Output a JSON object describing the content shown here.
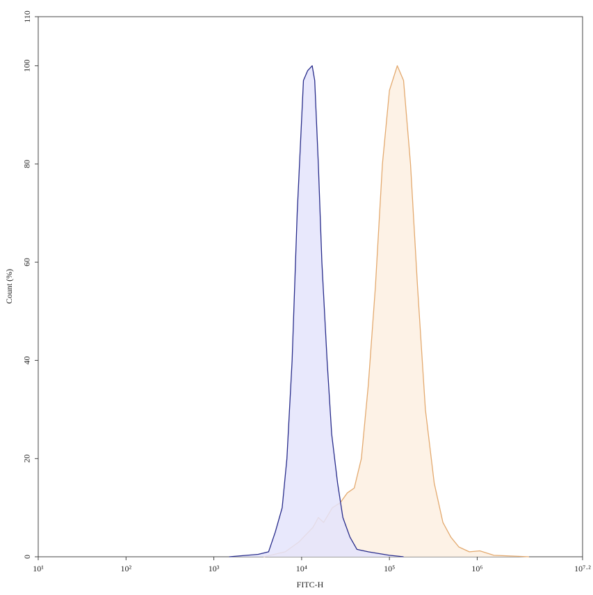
{
  "chart_data": {
    "type": "histogram-overlay",
    "xlabel": "FITC-H",
    "ylabel": "Count (%)",
    "xscale": "log",
    "xlim": [
      10,
      15848931.92
    ],
    "ylim": [
      0,
      110
    ],
    "xticks": [
      {
        "value": 10,
        "label": "10¹"
      },
      {
        "value": 100,
        "label": "10²"
      },
      {
        "value": 1000,
        "label": "10³"
      },
      {
        "value": 10000,
        "label": "10⁴"
      },
      {
        "value": 100000,
        "label": "10⁵"
      },
      {
        "value": 1000000,
        "label": "10⁶"
      },
      {
        "value": 15848931.92,
        "label": "10⁷·²"
      }
    ],
    "yticks": [
      0,
      20,
      40,
      60,
      80,
      100,
      110
    ],
    "series": [
      {
        "color": "#e3a96e",
        "fill": "#fdf0e2",
        "x": [
          3700,
          6500,
          9300,
          13500,
          15500,
          17800,
          22400,
          27500,
          33100,
          39800,
          47900,
          57500,
          69200,
          83200,
          100000,
          123000,
          145000,
          174000,
          209000,
          257000,
          324000,
          407000,
          501000,
          617000,
          813000,
          1070000,
          1550000,
          3890000
        ],
        "values": [
          0,
          1,
          3,
          6,
          8,
          7,
          10,
          11,
          13,
          14,
          20,
          35,
          55,
          80,
          95,
          100,
          97,
          80,
          55,
          30,
          15,
          7,
          4,
          2,
          1,
          1.2,
          0.3,
          0
        ]
      },
      {
        "color": "#262a8a",
        "fill": "#e4e4fb",
        "x": [
          1500,
          3200,
          4200,
          5000,
          6000,
          6800,
          7800,
          8900,
          10500,
          11700,
          13200,
          14100,
          15500,
          17000,
          19500,
          22000,
          25700,
          29500,
          35500,
          42700,
          57500,
          100000,
          145000
        ],
        "values": [
          0,
          0.5,
          1,
          5,
          10,
          20,
          40,
          70,
          97,
          99,
          100,
          97,
          80,
          60,
          40,
          25,
          15,
          8,
          4,
          1.5,
          1,
          0.3,
          0
        ]
      }
    ]
  }
}
